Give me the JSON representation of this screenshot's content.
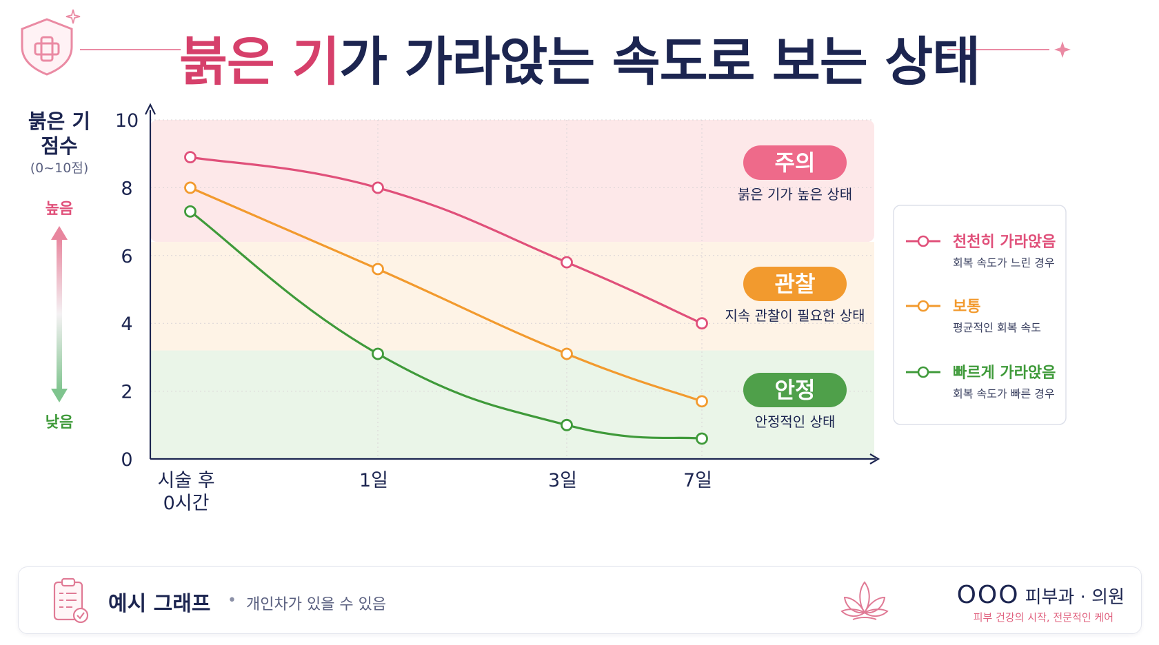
{
  "title": {
    "highlight": "붉은 기",
    "rest": "가 가라앉는 속도로 보는 상태"
  },
  "axis": {
    "y_label_line1": "붉은 기",
    "y_label_line2": "점수",
    "y_label_range": "(0~10점)",
    "high_label": "높음",
    "low_label": "낮음"
  },
  "zones": [
    {
      "badge": "주의",
      "desc": "붉은 기가 높은 상태",
      "color": "#ee6a8a",
      "fill": "#fde8e9",
      "from": 6.4,
      "to": 10
    },
    {
      "badge": "관찰",
      "desc": "지속 관찰이 필요한 상태",
      "color": "#f29a2e",
      "fill": "#fef3e6",
      "from": 3.2,
      "to": 6.4
    },
    {
      "badge": "안정",
      "desc": "안정적인 상태",
      "color": "#4fa04a",
      "fill": "#eaf5e8",
      "from": 0,
      "to": 3.2
    }
  ],
  "legend": [
    {
      "name": "천천히 가라앉음",
      "desc": "회복 속도가 느린 경우",
      "color": "#e0507a"
    },
    {
      "name": "보통",
      "desc": "평균적인 회복 속도",
      "color": "#f29a2e"
    },
    {
      "name": "빠르게 가라앉음",
      "desc": "회복 속도가 빠른 경우",
      "color": "#3f9a3a"
    }
  ],
  "chart_data": {
    "type": "line",
    "categories": [
      "시술 후\n0시간",
      "1일",
      "3일",
      "7일"
    ],
    "ylabel": "붉은 기 점수 (0~10점)",
    "ylim": [
      0,
      10
    ],
    "yticks": [
      0,
      2,
      4,
      6,
      8,
      10
    ],
    "grid": true,
    "legend_position": "right",
    "series": [
      {
        "name": "천천히 가라앉음",
        "color": "#e0507a",
        "values": [
          8.9,
          8.0,
          5.8,
          4.0
        ]
      },
      {
        "name": "보통",
        "color": "#f29a2e",
        "values": [
          8.0,
          5.6,
          3.1,
          1.7
        ]
      },
      {
        "name": "빠르게 가라앉음",
        "color": "#3f9a3a",
        "values": [
          7.3,
          3.1,
          1.0,
          0.6
        ]
      }
    ]
  },
  "footer": {
    "title": "예시 그래프",
    "note": "개인차가 있을 수 있음",
    "clinic_name": "OOO",
    "clinic_suffix": "피부과 · 의원",
    "clinic_tagline": "피부 건강의 시작, 전문적인 케어"
  }
}
